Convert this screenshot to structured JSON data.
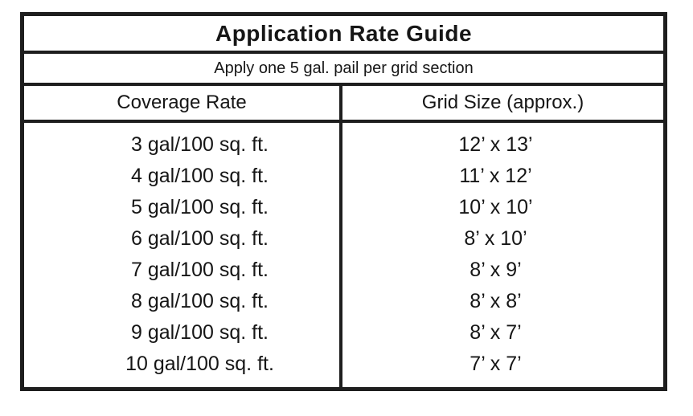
{
  "table": {
    "title": "Application Rate Guide",
    "subtitle": "Apply one 5 gal. pail per grid section",
    "columns": {
      "coverage": "Coverage Rate",
      "grid": "Grid Size (approx.)"
    },
    "rows": [
      {
        "coverage": "3 gal/100 sq. ft.",
        "grid": "12’ x 13’"
      },
      {
        "coverage": "4 gal/100 sq. ft.",
        "grid": "11’ x 12’"
      },
      {
        "coverage": "5 gal/100 sq. ft.",
        "grid": "10’ x 10’"
      },
      {
        "coverage": "6 gal/100 sq. ft.",
        "grid": "8’ x 10’"
      },
      {
        "coverage": "7 gal/100 sq. ft.",
        "grid": "8’ x 9’"
      },
      {
        "coverage": "8 gal/100 sq. ft.",
        "grid": "8’ x 8’"
      },
      {
        "coverage": "9 gal/100 sq. ft.",
        "grid": "8’ x 7’"
      },
      {
        "coverage": "10 gal/100 sq. ft.",
        "grid": "7’ x 7’"
      }
    ],
    "colors": {
      "border": "#1e1e1e",
      "text": "#161616",
      "background": "#ffffff"
    }
  }
}
